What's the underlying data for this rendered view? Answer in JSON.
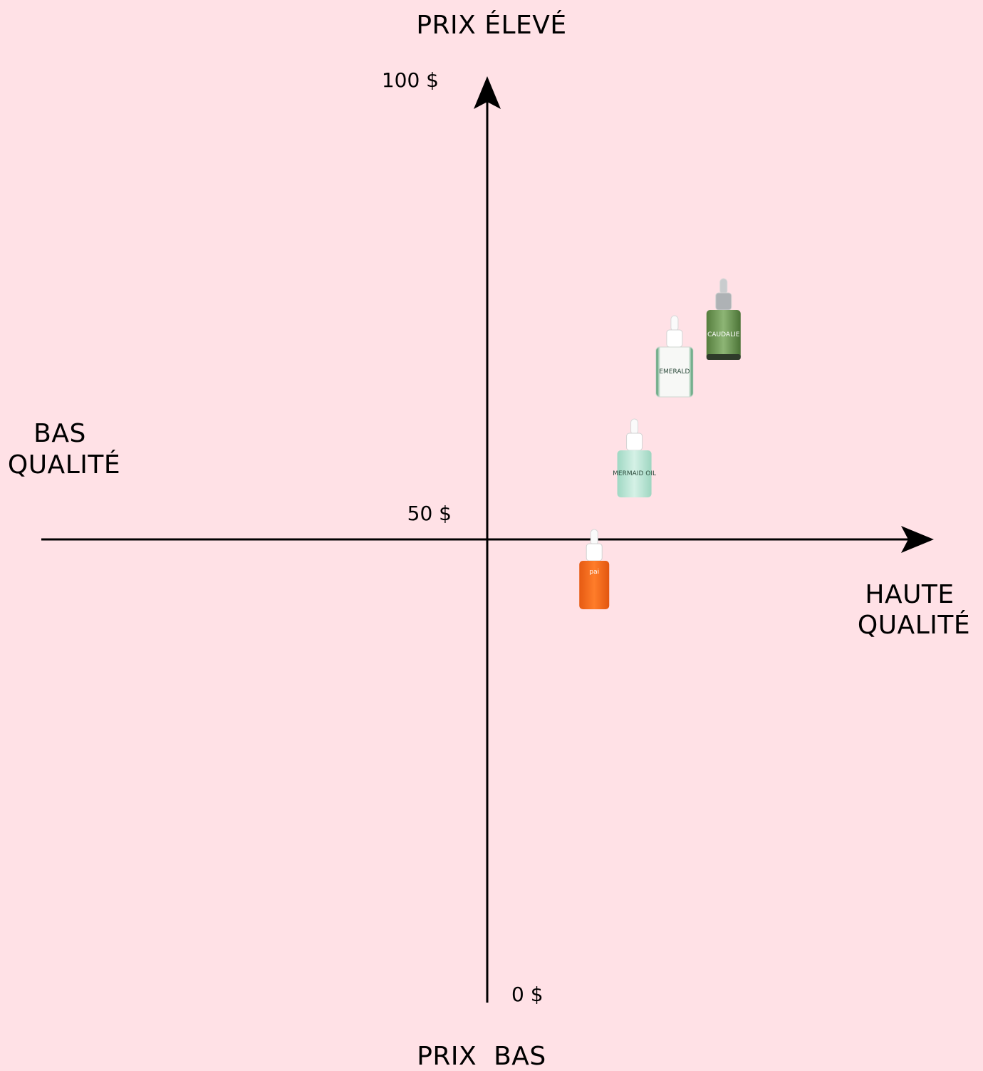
{
  "chart_data": {
    "type": "scatter",
    "title": "",
    "y_axis": {
      "top_label": "PRIX ÉLEVÉ",
      "bottom_label": "PRIX  BAS",
      "ticks": [
        "100 $",
        "50 $",
        "0 $"
      ],
      "range": [
        0,
        100
      ]
    },
    "x_axis": {
      "left_label_lines": [
        "BAS",
        "QUALITÉ"
      ],
      "right_label_lines": [
        "HAUTE",
        "QUALITÉ"
      ],
      "range": [
        -100,
        100
      ]
    },
    "grid": false,
    "points": [
      {
        "brand": "pai",
        "name": "pai",
        "x": 24,
        "y": 46,
        "color": "#f06a1c",
        "cap": "white",
        "text": "pai"
      },
      {
        "brand": "MERMAID OIL",
        "name": "MERMAID OIL",
        "x": 33,
        "y": 58,
        "color": "#bfe8d9",
        "cap": "white",
        "text": "MERMAID OIL"
      },
      {
        "brand": "EMERALD",
        "name": "EMERALD",
        "x": 42,
        "y": 69,
        "color": "#f2f5f2",
        "cap": "white",
        "text": "EMERALD"
      },
      {
        "brand": "CAUDALIE",
        "name": "CAUDALIE",
        "x": 53,
        "y": 73,
        "color": "#6f9a59",
        "cap": "silver",
        "text": "CAUDALIE"
      }
    ],
    "colors": {
      "background": "#ffe1e6",
      "axis": "#000000"
    }
  }
}
